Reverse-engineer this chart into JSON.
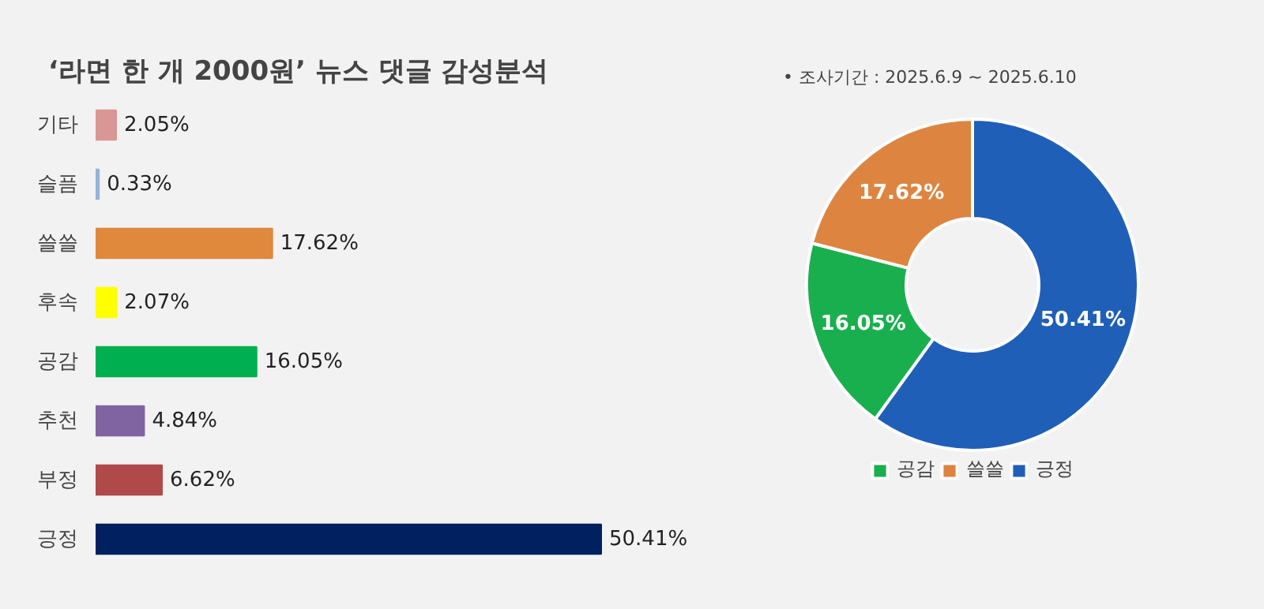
{
  "chart_data": [
    {
      "type": "bar",
      "orientation": "horizontal",
      "title": "‘라면 한 개 2000원’ 뉴스 댓글 감성분석",
      "categories": [
        "기타",
        "슬픔",
        "쓸쓸",
        "후속",
        "공감",
        "추천",
        "부정",
        "긍정"
      ],
      "values": [
        2.05,
        0.33,
        17.62,
        2.07,
        16.05,
        4.84,
        6.62,
        50.41
      ],
      "colors": [
        "#d99694",
        "#95b3d7",
        "#e0883c",
        "#ffff00",
        "#00b050",
        "#8064a2",
        "#b04a4a",
        "#002060"
      ],
      "value_labels": [
        "2.05%",
        "0.33%",
        "17.62%",
        "2.07%",
        "16.05%",
        "4.84%",
        "6.62%",
        "50.41%"
      ]
    },
    {
      "type": "donut",
      "subtitle": "•   조사기간 :    2025.6.9 ~ 2025.6.10",
      "categories": [
        "공감",
        "쓸쓸",
        "긍정"
      ],
      "values": [
        16.05,
        17.62,
        50.41
      ],
      "colors": [
        "#1aaf4e",
        "#dd8540",
        "#1f5fb8"
      ],
      "value_labels": [
        "16.05%",
        "17.62%",
        "50.41%"
      ],
      "legend": "bottom"
    }
  ]
}
